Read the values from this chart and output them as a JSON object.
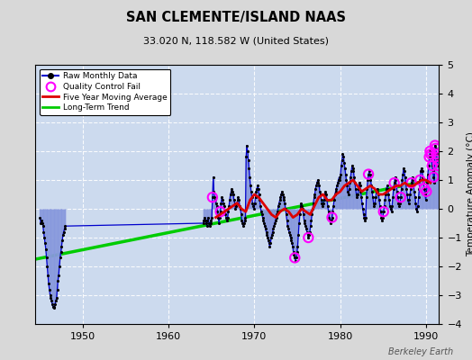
{
  "title": "SAN CLEMENTE/ISLAND NAAS",
  "subtitle": "33.020 N, 118.582 W (United States)",
  "ylabel": "Temperature Anomaly (°C)",
  "credit": "Berkeley Earth",
  "xlim": [
    1944.5,
    1991.5
  ],
  "ylim": [
    -4,
    5
  ],
  "yticks": [
    -4,
    -3,
    -2,
    -1,
    0,
    1,
    2,
    3,
    4,
    5
  ],
  "xticks": [
    1950,
    1960,
    1970,
    1980,
    1990
  ],
  "bg_color": "#d8d8d8",
  "plot_bg": "#ccdaee",
  "raw_color": "#0000cc",
  "raw_fill": "#8899dd",
  "ma_color": "#dd0000",
  "trend_color": "#00cc00",
  "qc_color": "#ff00ff",
  "raw_monthly": [
    [
      1945.04,
      -0.3
    ],
    [
      1945.12,
      -0.5
    ],
    [
      1945.21,
      -0.4
    ],
    [
      1945.29,
      -0.5
    ],
    [
      1945.38,
      -0.6
    ],
    [
      1945.46,
      -0.8
    ],
    [
      1945.54,
      -1.0
    ],
    [
      1945.62,
      -1.2
    ],
    [
      1945.71,
      -1.4
    ],
    [
      1945.79,
      -1.7
    ],
    [
      1945.88,
      -2.0
    ],
    [
      1945.96,
      -2.3
    ],
    [
      1946.04,
      -2.6
    ],
    [
      1946.12,
      -2.8
    ],
    [
      1946.21,
      -3.0
    ],
    [
      1946.29,
      -3.1
    ],
    [
      1946.38,
      -3.2
    ],
    [
      1946.46,
      -3.3
    ],
    [
      1946.54,
      -3.4
    ],
    [
      1946.62,
      -3.45
    ],
    [
      1946.71,
      -3.4
    ],
    [
      1946.79,
      -3.3
    ],
    [
      1946.88,
      -3.2
    ],
    [
      1946.96,
      -3.1
    ],
    [
      1947.04,
      -2.8
    ],
    [
      1947.12,
      -2.5
    ],
    [
      1947.21,
      -2.3
    ],
    [
      1947.29,
      -2.0
    ],
    [
      1947.38,
      -1.7
    ],
    [
      1947.46,
      -1.5
    ],
    [
      1947.54,
      -1.3
    ],
    [
      1947.62,
      -1.1
    ],
    [
      1947.71,
      -0.9
    ],
    [
      1947.79,
      -0.8
    ],
    [
      1947.88,
      -0.7
    ],
    [
      1947.96,
      -0.6
    ],
    [
      1964.04,
      -0.5
    ],
    [
      1964.12,
      -0.4
    ],
    [
      1964.21,
      -0.3
    ],
    [
      1964.29,
      -0.4
    ],
    [
      1964.38,
      -0.5
    ],
    [
      1964.46,
      -0.6
    ],
    [
      1964.54,
      -0.4
    ],
    [
      1964.62,
      -0.3
    ],
    [
      1964.71,
      -0.5
    ],
    [
      1964.79,
      -0.6
    ],
    [
      1964.88,
      -0.5
    ],
    [
      1964.96,
      -0.4
    ],
    [
      1965.04,
      -0.3
    ],
    [
      1965.12,
      0.4
    ],
    [
      1965.21,
      1.1
    ],
    [
      1965.29,
      0.6
    ],
    [
      1965.38,
      0.4
    ],
    [
      1965.46,
      0.3
    ],
    [
      1965.54,
      0.2
    ],
    [
      1965.62,
      0.1
    ],
    [
      1965.71,
      -0.1
    ],
    [
      1965.79,
      -0.3
    ],
    [
      1965.88,
      -0.5
    ],
    [
      1965.96,
      -0.3
    ],
    [
      1966.04,
      -0.1
    ],
    [
      1966.12,
      0.2
    ],
    [
      1966.21,
      0.4
    ],
    [
      1966.29,
      0.3
    ],
    [
      1966.38,
      0.2
    ],
    [
      1966.46,
      0.1
    ],
    [
      1966.54,
      -0.1
    ],
    [
      1966.62,
      -0.2
    ],
    [
      1966.71,
      -0.3
    ],
    [
      1966.79,
      -0.4
    ],
    [
      1966.88,
      -0.3
    ],
    [
      1966.96,
      -0.1
    ],
    [
      1967.04,
      0.1
    ],
    [
      1967.12,
      0.3
    ],
    [
      1967.21,
      0.5
    ],
    [
      1967.29,
      0.6
    ],
    [
      1967.38,
      0.7
    ],
    [
      1967.46,
      0.6
    ],
    [
      1967.54,
      0.5
    ],
    [
      1967.62,
      0.3
    ],
    [
      1967.71,
      0.2
    ],
    [
      1967.79,
      0.0
    ],
    [
      1967.88,
      0.1
    ],
    [
      1967.96,
      0.2
    ],
    [
      1968.04,
      0.3
    ],
    [
      1968.12,
      0.4
    ],
    [
      1968.21,
      0.3
    ],
    [
      1968.29,
      0.1
    ],
    [
      1968.38,
      0.0
    ],
    [
      1968.46,
      -0.2
    ],
    [
      1968.54,
      -0.4
    ],
    [
      1968.62,
      -0.5
    ],
    [
      1968.71,
      -0.6
    ],
    [
      1968.79,
      -0.5
    ],
    [
      1968.88,
      -0.4
    ],
    [
      1968.96,
      -0.3
    ],
    [
      1969.04,
      1.8
    ],
    [
      1969.12,
      2.2
    ],
    [
      1969.21,
      2.0
    ],
    [
      1969.29,
      1.7
    ],
    [
      1969.38,
      1.4
    ],
    [
      1969.46,
      1.1
    ],
    [
      1969.54,
      0.8
    ],
    [
      1969.62,
      0.6
    ],
    [
      1969.71,
      0.4
    ],
    [
      1969.79,
      0.2
    ],
    [
      1969.88,
      0.1
    ],
    [
      1969.96,
      0.0
    ],
    [
      1970.04,
      0.2
    ],
    [
      1970.12,
      0.4
    ],
    [
      1970.21,
      0.6
    ],
    [
      1970.29,
      0.7
    ],
    [
      1970.38,
      0.8
    ],
    [
      1970.46,
      0.7
    ],
    [
      1970.54,
      0.5
    ],
    [
      1970.62,
      0.3
    ],
    [
      1970.71,
      0.1
    ],
    [
      1970.79,
      -0.1
    ],
    [
      1970.88,
      -0.2
    ],
    [
      1970.96,
      -0.3
    ],
    [
      1971.04,
      -0.4
    ],
    [
      1971.12,
      -0.5
    ],
    [
      1971.21,
      -0.6
    ],
    [
      1971.29,
      -0.7
    ],
    [
      1971.38,
      -0.8
    ],
    [
      1971.46,
      -0.9
    ],
    [
      1971.54,
      -1.0
    ],
    [
      1971.62,
      -1.1
    ],
    [
      1971.71,
      -1.2
    ],
    [
      1971.79,
      -1.3
    ],
    [
      1971.88,
      -1.2
    ],
    [
      1971.96,
      -1.0
    ],
    [
      1972.04,
      -0.9
    ],
    [
      1972.12,
      -0.8
    ],
    [
      1972.21,
      -0.7
    ],
    [
      1972.29,
      -0.6
    ],
    [
      1972.38,
      -0.5
    ],
    [
      1972.46,
      -0.4
    ],
    [
      1972.54,
      -0.3
    ],
    [
      1972.62,
      -0.2
    ],
    [
      1972.71,
      -0.1
    ],
    [
      1972.79,
      0.1
    ],
    [
      1972.88,
      0.2
    ],
    [
      1972.96,
      0.3
    ],
    [
      1973.04,
      0.4
    ],
    [
      1973.12,
      0.5
    ],
    [
      1973.21,
      0.6
    ],
    [
      1973.29,
      0.5
    ],
    [
      1973.38,
      0.4
    ],
    [
      1973.46,
      0.3
    ],
    [
      1973.54,
      0.2
    ],
    [
      1973.62,
      0.0
    ],
    [
      1973.71,
      -0.2
    ],
    [
      1973.79,
      -0.4
    ],
    [
      1973.88,
      -0.6
    ],
    [
      1973.96,
      -0.7
    ],
    [
      1974.04,
      -0.8
    ],
    [
      1974.12,
      -0.9
    ],
    [
      1974.21,
      -1.0
    ],
    [
      1974.29,
      -1.1
    ],
    [
      1974.38,
      -1.2
    ],
    [
      1974.46,
      -1.3
    ],
    [
      1974.54,
      -1.5
    ],
    [
      1974.62,
      -1.6
    ],
    [
      1974.71,
      -1.7
    ],
    [
      1974.79,
      -1.8
    ],
    [
      1974.88,
      -1.7
    ],
    [
      1974.96,
      -1.5
    ],
    [
      1975.04,
      -1.3
    ],
    [
      1975.12,
      -0.9
    ],
    [
      1975.21,
      -0.5
    ],
    [
      1975.29,
      -0.2
    ],
    [
      1975.38,
      0.1
    ],
    [
      1975.46,
      0.2
    ],
    [
      1975.54,
      0.1
    ],
    [
      1975.62,
      0.0
    ],
    [
      1975.71,
      -0.2
    ],
    [
      1975.79,
      -0.4
    ],
    [
      1975.88,
      -0.5
    ],
    [
      1975.96,
      -0.6
    ],
    [
      1976.04,
      -0.7
    ],
    [
      1976.12,
      -0.8
    ],
    [
      1976.21,
      -0.9
    ],
    [
      1976.29,
      -1.0
    ],
    [
      1976.38,
      -0.9
    ],
    [
      1976.46,
      -0.8
    ],
    [
      1976.54,
      -0.6
    ],
    [
      1976.62,
      -0.4
    ],
    [
      1976.71,
      -0.2
    ],
    [
      1976.79,
      0.0
    ],
    [
      1976.88,
      0.2
    ],
    [
      1976.96,
      0.4
    ],
    [
      1977.04,
      0.5
    ],
    [
      1977.12,
      0.7
    ],
    [
      1977.21,
      0.8
    ],
    [
      1977.29,
      0.9
    ],
    [
      1977.38,
      1.0
    ],
    [
      1977.46,
      0.9
    ],
    [
      1977.54,
      0.8
    ],
    [
      1977.62,
      0.6
    ],
    [
      1977.71,
      0.5
    ],
    [
      1977.79,
      0.3
    ],
    [
      1977.88,
      0.2
    ],
    [
      1977.96,
      0.1
    ],
    [
      1978.04,
      0.2
    ],
    [
      1978.12,
      0.3
    ],
    [
      1978.21,
      0.5
    ],
    [
      1978.29,
      0.6
    ],
    [
      1978.38,
      0.5
    ],
    [
      1978.46,
      0.3
    ],
    [
      1978.54,
      0.1
    ],
    [
      1978.62,
      -0.1
    ],
    [
      1978.71,
      -0.3
    ],
    [
      1978.79,
      -0.4
    ],
    [
      1978.88,
      -0.5
    ],
    [
      1978.96,
      -0.4
    ],
    [
      1979.04,
      -0.3
    ],
    [
      1979.12,
      -0.1
    ],
    [
      1979.21,
      0.1
    ],
    [
      1979.29,
      0.3
    ],
    [
      1979.38,
      0.5
    ],
    [
      1979.46,
      0.6
    ],
    [
      1979.54,
      0.7
    ],
    [
      1979.62,
      0.8
    ],
    [
      1979.71,
      0.9
    ],
    [
      1979.79,
      1.0
    ],
    [
      1979.88,
      1.1
    ],
    [
      1979.96,
      1.0
    ],
    [
      1980.04,
      1.2
    ],
    [
      1980.12,
      1.5
    ],
    [
      1980.21,
      1.7
    ],
    [
      1980.29,
      1.9
    ],
    [
      1980.38,
      1.8
    ],
    [
      1980.46,
      1.6
    ],
    [
      1980.54,
      1.4
    ],
    [
      1980.62,
      1.2
    ],
    [
      1980.71,
      1.0
    ],
    [
      1980.79,
      0.8
    ],
    [
      1980.88,
      0.6
    ],
    [
      1980.96,
      0.5
    ],
    [
      1981.04,
      0.7
    ],
    [
      1981.12,
      0.9
    ],
    [
      1981.21,
      1.1
    ],
    [
      1981.29,
      1.3
    ],
    [
      1981.38,
      1.5
    ],
    [
      1981.46,
      1.4
    ],
    [
      1981.54,
      1.3
    ],
    [
      1981.62,
      1.1
    ],
    [
      1981.71,
      0.9
    ],
    [
      1981.79,
      0.7
    ],
    [
      1981.88,
      0.5
    ],
    [
      1981.96,
      0.4
    ],
    [
      1982.04,
      0.5
    ],
    [
      1982.12,
      0.7
    ],
    [
      1982.21,
      0.9
    ],
    [
      1982.29,
      0.8
    ],
    [
      1982.38,
      0.6
    ],
    [
      1982.46,
      0.4
    ],
    [
      1982.54,
      0.2
    ],
    [
      1982.62,
      0.0
    ],
    [
      1982.71,
      -0.2
    ],
    [
      1982.79,
      -0.3
    ],
    [
      1982.88,
      -0.4
    ],
    [
      1982.96,
      -0.3
    ],
    [
      1983.04,
      0.4
    ],
    [
      1983.12,
      0.7
    ],
    [
      1983.21,
      1.0
    ],
    [
      1983.29,
      1.2
    ],
    [
      1983.38,
      1.3
    ],
    [
      1983.46,
      1.2
    ],
    [
      1983.54,
      1.0
    ],
    [
      1983.62,
      0.8
    ],
    [
      1983.71,
      0.6
    ],
    [
      1983.79,
      0.4
    ],
    [
      1983.88,
      0.2
    ],
    [
      1983.96,
      0.1
    ],
    [
      1984.04,
      0.2
    ],
    [
      1984.12,
      0.4
    ],
    [
      1984.21,
      0.6
    ],
    [
      1984.29,
      0.7
    ],
    [
      1984.38,
      0.6
    ],
    [
      1984.46,
      0.5
    ],
    [
      1984.54,
      0.3
    ],
    [
      1984.62,
      0.1
    ],
    [
      1984.71,
      -0.1
    ],
    [
      1984.79,
      -0.3
    ],
    [
      1984.88,
      -0.4
    ],
    [
      1984.96,
      -0.3
    ],
    [
      1985.04,
      -0.1
    ],
    [
      1985.12,
      0.1
    ],
    [
      1985.21,
      0.3
    ],
    [
      1985.29,
      0.5
    ],
    [
      1985.38,
      0.7
    ],
    [
      1985.46,
      0.8
    ],
    [
      1985.54,
      0.7
    ],
    [
      1985.62,
      0.5
    ],
    [
      1985.71,
      0.3
    ],
    [
      1985.79,
      0.1
    ],
    [
      1985.88,
      0.0
    ],
    [
      1985.96,
      -0.1
    ],
    [
      1986.04,
      0.1
    ],
    [
      1986.12,
      0.4
    ],
    [
      1986.21,
      0.7
    ],
    [
      1986.29,
      0.9
    ],
    [
      1986.38,
      1.1
    ],
    [
      1986.46,
      1.0
    ],
    [
      1986.54,
      0.8
    ],
    [
      1986.62,
      0.6
    ],
    [
      1986.71,
      0.4
    ],
    [
      1986.79,
      0.2
    ],
    [
      1986.88,
      0.1
    ],
    [
      1986.96,
      0.2
    ],
    [
      1987.04,
      0.4
    ],
    [
      1987.12,
      0.7
    ],
    [
      1987.21,
      1.0
    ],
    [
      1987.29,
      1.2
    ],
    [
      1987.38,
      1.4
    ],
    [
      1987.46,
      1.3
    ],
    [
      1987.54,
      1.1
    ],
    [
      1987.62,
      0.9
    ],
    [
      1987.71,
      0.7
    ],
    [
      1987.79,
      0.5
    ],
    [
      1987.88,
      0.3
    ],
    [
      1987.96,
      0.2
    ],
    [
      1988.04,
      0.3
    ],
    [
      1988.12,
      0.5
    ],
    [
      1988.21,
      0.7
    ],
    [
      1988.29,
      0.9
    ],
    [
      1988.38,
      1.1
    ],
    [
      1988.46,
      1.0
    ],
    [
      1988.54,
      0.8
    ],
    [
      1988.62,
      0.6
    ],
    [
      1988.71,
      0.4
    ],
    [
      1988.79,
      0.2
    ],
    [
      1988.88,
      0.0
    ],
    [
      1988.96,
      -0.1
    ],
    [
      1989.04,
      0.1
    ],
    [
      1989.12,
      0.4
    ],
    [
      1989.21,
      0.7
    ],
    [
      1989.29,
      1.0
    ],
    [
      1989.38,
      1.3
    ],
    [
      1989.46,
      1.4
    ],
    [
      1989.54,
      1.3
    ],
    [
      1989.62,
      1.1
    ],
    [
      1989.71,
      0.9
    ],
    [
      1989.79,
      0.7
    ],
    [
      1989.88,
      0.5
    ],
    [
      1989.96,
      0.3
    ],
    [
      1990.04,
      0.6
    ],
    [
      1990.12,
      0.9
    ],
    [
      1990.21,
      1.2
    ],
    [
      1990.29,
      1.5
    ],
    [
      1990.38,
      1.8
    ],
    [
      1990.46,
      2.0
    ],
    [
      1990.54,
      1.9
    ],
    [
      1990.62,
      1.7
    ],
    [
      1990.71,
      1.5
    ],
    [
      1990.79,
      1.3
    ],
    [
      1990.88,
      1.1
    ],
    [
      1990.96,
      0.9
    ],
    [
      1991.04,
      2.2
    ],
    [
      1991.12,
      2.1
    ],
    [
      1991.21,
      1.9
    ],
    [
      1991.29,
      1.7
    ],
    [
      1991.38,
      1.5
    ]
  ],
  "moving_avg": [
    [
      1965.5,
      -0.3
    ],
    [
      1966.0,
      -0.2
    ],
    [
      1966.5,
      -0.1
    ],
    [
      1967.0,
      0.0
    ],
    [
      1967.5,
      0.1
    ],
    [
      1968.0,
      0.2
    ],
    [
      1968.5,
      0.0
    ],
    [
      1969.0,
      -0.1
    ],
    [
      1969.5,
      0.3
    ],
    [
      1970.0,
      0.5
    ],
    [
      1970.5,
      0.4
    ],
    [
      1971.0,
      0.2
    ],
    [
      1971.5,
      0.0
    ],
    [
      1972.0,
      -0.2
    ],
    [
      1972.5,
      -0.3
    ],
    [
      1973.0,
      -0.1
    ],
    [
      1973.5,
      0.0
    ],
    [
      1974.0,
      -0.1
    ],
    [
      1974.5,
      -0.3
    ],
    [
      1975.0,
      -0.2
    ],
    [
      1975.5,
      0.0
    ],
    [
      1976.0,
      -0.1
    ],
    [
      1976.5,
      -0.2
    ],
    [
      1977.0,
      0.1
    ],
    [
      1977.5,
      0.4
    ],
    [
      1978.0,
      0.5
    ],
    [
      1978.5,
      0.3
    ],
    [
      1979.0,
      0.3
    ],
    [
      1979.5,
      0.5
    ],
    [
      1980.0,
      0.6
    ],
    [
      1980.5,
      0.8
    ],
    [
      1981.0,
      0.9
    ],
    [
      1981.5,
      1.0
    ],
    [
      1982.0,
      0.8
    ],
    [
      1982.5,
      0.6
    ],
    [
      1983.0,
      0.7
    ],
    [
      1983.5,
      0.8
    ],
    [
      1984.0,
      0.7
    ],
    [
      1984.5,
      0.5
    ],
    [
      1985.0,
      0.5
    ],
    [
      1985.5,
      0.6
    ],
    [
      1986.0,
      0.7
    ],
    [
      1986.5,
      0.8
    ],
    [
      1987.0,
      0.8
    ],
    [
      1987.5,
      0.9
    ],
    [
      1988.0,
      0.8
    ],
    [
      1988.5,
      0.8
    ],
    [
      1989.0,
      0.9
    ],
    [
      1989.5,
      1.0
    ],
    [
      1990.0,
      1.0
    ],
    [
      1990.5,
      0.9
    ]
  ],
  "trend_line": [
    [
      1944.5,
      -1.75
    ],
    [
      1991.5,
      1.05
    ]
  ],
  "qc_fail_points": [
    [
      1965.12,
      0.4
    ],
    [
      1966.04,
      -0.1
    ],
    [
      1974.71,
      -1.7
    ],
    [
      1976.29,
      -1.0
    ],
    [
      1979.04,
      -0.3
    ],
    [
      1983.29,
      1.2
    ],
    [
      1985.04,
      -0.1
    ],
    [
      1986.29,
      0.9
    ],
    [
      1987.04,
      0.4
    ],
    [
      1988.29,
      0.9
    ],
    [
      1989.29,
      1.0
    ],
    [
      1989.79,
      0.7
    ],
    [
      1990.04,
      0.6
    ],
    [
      1990.38,
      1.8
    ],
    [
      1990.46,
      2.0
    ],
    [
      1990.54,
      1.9
    ],
    [
      1990.71,
      1.5
    ],
    [
      1990.88,
      1.1
    ],
    [
      1991.04,
      2.2
    ],
    [
      1991.12,
      2.1
    ],
    [
      1991.21,
      1.9
    ],
    [
      1991.29,
      1.7
    ],
    [
      1991.38,
      1.5
    ]
  ]
}
